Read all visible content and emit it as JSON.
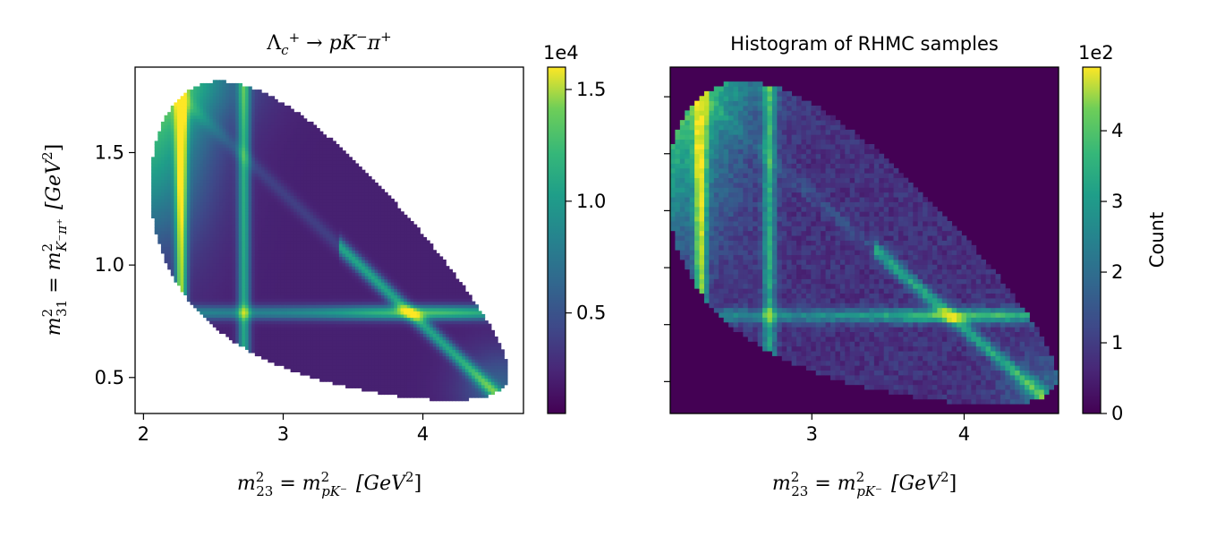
{
  "chart_data": [
    {
      "type": "heatmap",
      "title_parts": [
        "Λ",
        "c",
        "+",
        " → ",
        "p",
        "K",
        "−",
        "π",
        "+"
      ],
      "xlabel": {
        "main_a": "m",
        "sup_a": "2",
        "sub_a": "23",
        "eq": " = ",
        "main_b": "m",
        "sup_b": "2",
        "sub_b": "pK⁻",
        "units": "[GeV",
        "units_sup": "2",
        "units_close": "]"
      },
      "ylabel": {
        "main_a": "m",
        "sup_a": "2",
        "sub_a": "31",
        "eq": " = ",
        "main_b": "m",
        "sup_b": "2",
        "sub_b": "K⁻π⁺",
        "units": "[GeV",
        "units_sup": "2",
        "units_close": "]"
      },
      "xlim": [
        1.94,
        4.72
      ],
      "ylim": [
        0.34,
        1.88
      ],
      "xticks": [
        2,
        3,
        4
      ],
      "xtick_labels": [
        "2",
        "3",
        "4"
      ],
      "yticks": [
        0.5,
        1.0,
        1.5
      ],
      "ytick_labels": [
        "0.5",
        "1.0",
        "1.5"
      ],
      "colorbar": {
        "offset_label": "1e4",
        "ticks": [
          0.5,
          1.0,
          1.5
        ],
        "tick_labels": [
          "0.5",
          "1.0",
          "1.5"
        ],
        "range": [
          0.05,
          1.6
        ],
        "colormap": "viridis"
      },
      "features": [
        {
          "kind": "vertical-band",
          "x": 2.27,
          "peak": 0.75
        },
        {
          "kind": "vertical-band",
          "x": 2.7,
          "peak": 0.55
        },
        {
          "kind": "horizontal-band",
          "y": 0.79,
          "peak": 0.9
        },
        {
          "kind": "diagonal-band",
          "from": [
            3.55,
            1.0
          ],
          "to": [
            4.6,
            0.38
          ],
          "peak": 0.7
        }
      ]
    },
    {
      "type": "heatmap",
      "title": "Histogram of RHMC samples",
      "xlabel": {
        "main_a": "m",
        "sup_a": "2",
        "sub_a": "23",
        "eq": " = ",
        "main_b": "m",
        "sup_b": "2",
        "sub_b": "pK⁻",
        "units": "[GeV",
        "units_sup": "2",
        "units_close": "]"
      },
      "xlim": [
        2.07,
        4.62
      ],
      "ylim": [
        0.36,
        1.88
      ],
      "xticks": [
        3,
        4
      ],
      "xtick_labels": [
        "3",
        "4"
      ],
      "yticks": [
        0.5,
        0.75,
        1.0,
        1.25,
        1.5,
        1.75
      ],
      "bins": [
        80,
        72
      ],
      "colorbar": {
        "offset_label": "1e2",
        "label": "Count",
        "ticks": [
          0,
          1,
          2,
          3,
          4
        ],
        "tick_labels": [
          "0",
          "1",
          "2",
          "3",
          "4"
        ],
        "range": [
          0,
          4.9
        ],
        "colormap": "viridis"
      }
    }
  ]
}
